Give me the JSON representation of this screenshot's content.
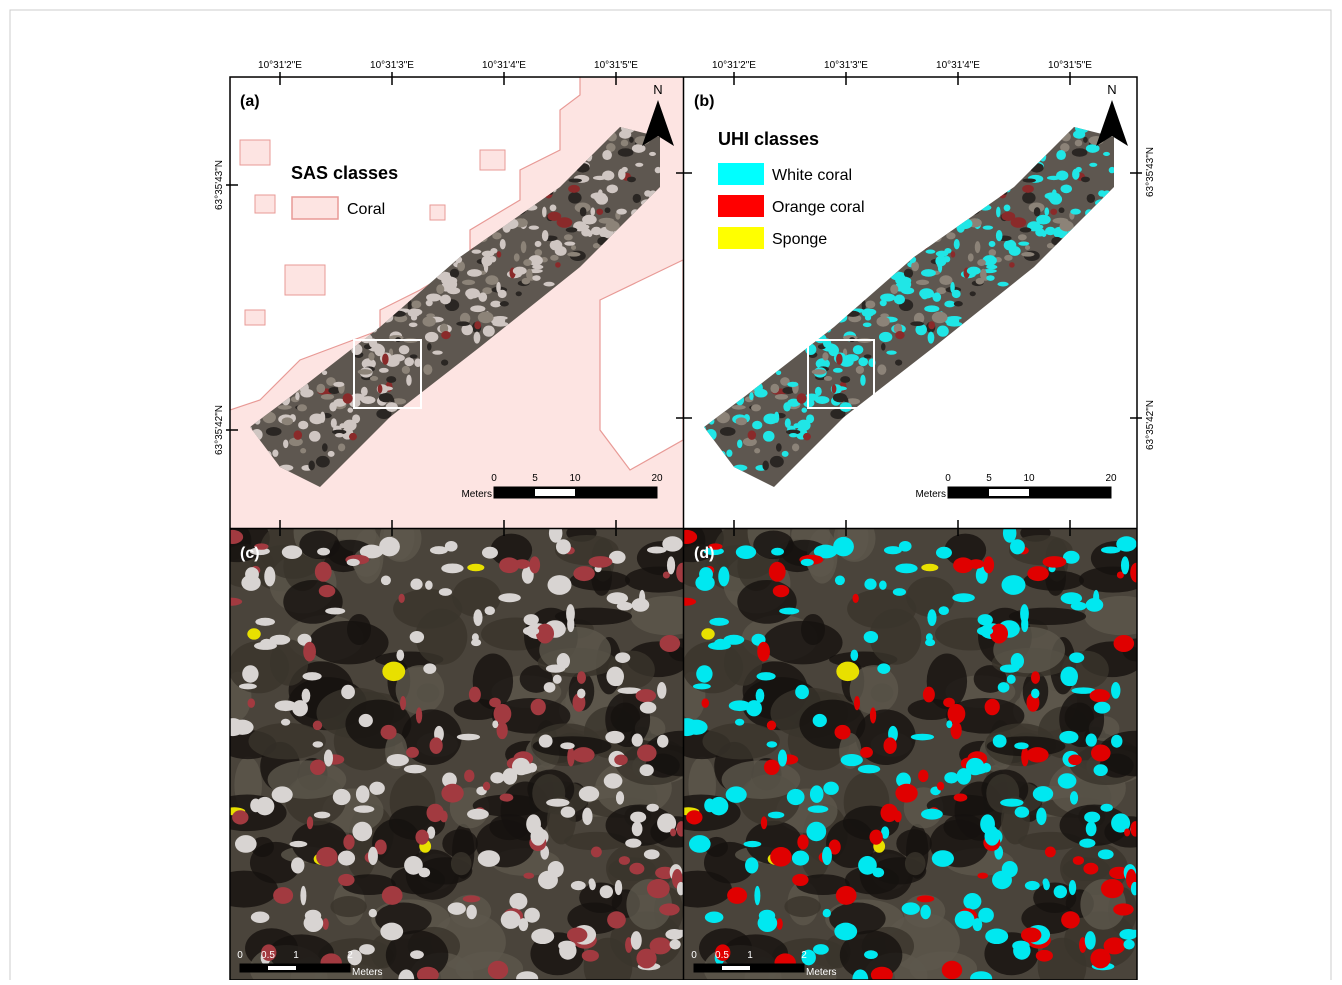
{
  "lon_labels": [
    "10°31'2\"E",
    "10°31'3\"E",
    "10°31'4\"E",
    "10°31'5\"E"
  ],
  "lat_labels": [
    "63°35'43\"N",
    "63°35'42\"N"
  ],
  "panels": [
    {
      "label": "(a)",
      "north": "N",
      "legend": {
        "title": "SAS classes",
        "items": [
          {
            "label": "Coral",
            "color": "#fde4e2"
          }
        ]
      },
      "scale_bar": {
        "ticks": [
          "0",
          "5",
          "10",
          "20"
        ],
        "unit": "Meters"
      }
    },
    {
      "label": "(b)",
      "north": "N",
      "legend": {
        "title": "UHI classes",
        "items": [
          {
            "label": "White coral",
            "color": "#00ffff"
          },
          {
            "label": "Orange coral",
            "color": "#ff0000"
          },
          {
            "label": "Sponge",
            "color": "#ffff00"
          }
        ]
      },
      "scale_bar": {
        "ticks": [
          "0",
          "5",
          "10",
          "20"
        ],
        "unit": "Meters"
      }
    },
    {
      "label": "(c)",
      "scale_bar": {
        "ticks": [
          "0",
          "0.5",
          "1",
          "2"
        ],
        "unit": "Meters"
      }
    },
    {
      "label": "(d)",
      "scale_bar": {
        "ticks": [
          "0",
          "0.5",
          "1",
          "2"
        ],
        "unit": "Meters"
      }
    }
  ]
}
